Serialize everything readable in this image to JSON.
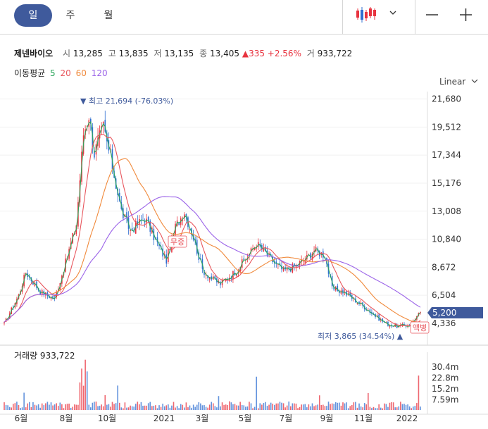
{
  "tabs": [
    {
      "label": "일"
    },
    {
      "label": "주"
    },
    {
      "label": "월"
    }
  ],
  "stock": {
    "name": "제넨바이오",
    "open_label": "시",
    "open": "13,285",
    "high_label": "고",
    "high": "13,835",
    "low_label": "저",
    "low": "13,135",
    "close_label": "종",
    "close": "13,405",
    "change": "▲335 +2.56%",
    "volume_label": "거",
    "volume": "933,722"
  },
  "ma": {
    "label": "이동평균",
    "periods": [
      {
        "label": "5",
        "color": "#2aa55a"
      },
      {
        "label": "20",
        "color": "#e8565d"
      },
      {
        "label": "60",
        "color": "#f08a3c"
      },
      {
        "label": "120",
        "color": "#9b63e8"
      }
    ]
  },
  "scale_label": "Linear",
  "colors": {
    "up": "#e8333f",
    "down": "#2f6fd1",
    "accent": "#3f5a9c"
  },
  "chart_data": {
    "type": "candlestick",
    "x_labels": [
      "6월",
      "8월",
      "10월",
      "2021",
      "3월",
      "5월",
      "7월",
      "9월",
      "11월",
      "2022"
    ],
    "yticks": [
      21680,
      19512,
      17344,
      15176,
      13008,
      10840,
      8672,
      6504,
      4336
    ],
    "ytick_labels": [
      "21,680",
      "19,512",
      "17,344",
      "15,176",
      "13,008",
      "10,840",
      "8,672",
      "6,504",
      "4,336"
    ],
    "ylim": [
      3300,
      22800
    ],
    "last_price": "5,200",
    "max_annotation": "▼ 최고 21,694 (-76.03%)",
    "min_annotation": "최저 3,865 (34.54%) ▲",
    "markers": [
      {
        "text": "무증",
        "date": "2020-12",
        "value": 10650
      },
      {
        "text": "액병",
        "date": "2022-01",
        "value": 4250
      }
    ],
    "close_anchors": [
      {
        "x": 0,
        "y": 4300
      },
      {
        "x": 8,
        "y": 6500
      },
      {
        "x": 12,
        "y": 8300
      },
      {
        "x": 20,
        "y": 6800
      },
      {
        "x": 28,
        "y": 6200
      },
      {
        "x": 35,
        "y": 9500
      },
      {
        "x": 40,
        "y": 12000
      },
      {
        "x": 44,
        "y": 19000
      },
      {
        "x": 47,
        "y": 20500
      },
      {
        "x": 50,
        "y": 17500
      },
      {
        "x": 55,
        "y": 19500
      },
      {
        "x": 60,
        "y": 16500
      },
      {
        "x": 65,
        "y": 13000
      },
      {
        "x": 70,
        "y": 11500
      },
      {
        "x": 78,
        "y": 12500
      },
      {
        "x": 85,
        "y": 10500
      },
      {
        "x": 90,
        "y": 9200
      },
      {
        "x": 95,
        "y": 11800
      },
      {
        "x": 100,
        "y": 13000
      },
      {
        "x": 105,
        "y": 11000
      },
      {
        "x": 110,
        "y": 8500
      },
      {
        "x": 115,
        "y": 7800
      },
      {
        "x": 120,
        "y": 7400
      },
      {
        "x": 128,
        "y": 8300
      },
      {
        "x": 135,
        "y": 9500
      },
      {
        "x": 140,
        "y": 10500
      },
      {
        "x": 145,
        "y": 9800
      },
      {
        "x": 150,
        "y": 9000
      },
      {
        "x": 155,
        "y": 8400
      },
      {
        "x": 162,
        "y": 8800
      },
      {
        "x": 168,
        "y": 9400
      },
      {
        "x": 172,
        "y": 10000
      },
      {
        "x": 178,
        "y": 9600
      },
      {
        "x": 182,
        "y": 7000
      },
      {
        "x": 188,
        "y": 6800
      },
      {
        "x": 195,
        "y": 6100
      },
      {
        "x": 200,
        "y": 5600
      },
      {
        "x": 206,
        "y": 4900
      },
      {
        "x": 212,
        "y": 4300
      },
      {
        "x": 218,
        "y": 4100
      },
      {
        "x": 225,
        "y": 4200
      },
      {
        "x": 231,
        "y": 5200
      }
    ],
    "volume": {
      "label": "거래량",
      "value": "933,722",
      "yticks": [
        "30.4m",
        "22.8m",
        "15.2m",
        "7.59m"
      ]
    }
  }
}
